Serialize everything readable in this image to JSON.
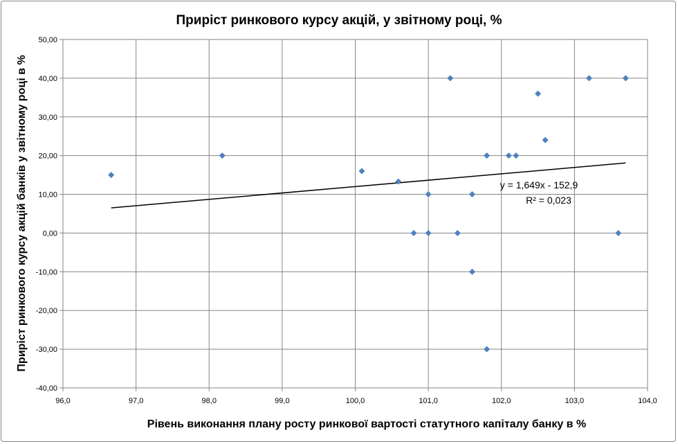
{
  "chart_data": {
    "type": "scatter",
    "title": "Приріст ринкового курсу акцій, у звітному році, %",
    "xlabel": "Рівень виконання плану росту ринкової вартості статутного капіталу банку в %",
    "ylabel": "Приріст ринкового курсу акцій банків у звітному році в %",
    "xlim": [
      96,
      104
    ],
    "ylim": [
      -40,
      50
    ],
    "xticks": [
      "96,0",
      "97,0",
      "98,0",
      "99,0",
      "100,0",
      "101,0",
      "102,0",
      "103,0",
      "104,0"
    ],
    "yticks": [
      "50,00",
      "40,00",
      "30,00",
      "20,00",
      "10,00",
      "0,00",
      "-10,00",
      "-20,00",
      "-30,00",
      "-40,00"
    ],
    "grid": true,
    "marker_color": "#4f81bd",
    "points": [
      [
        96.66,
        15
      ],
      [
        98.18,
        20
      ],
      [
        100.09,
        16
      ],
      [
        100.59,
        13.3
      ],
      [
        100.8,
        0
      ],
      [
        101.0,
        0
      ],
      [
        101.0,
        10
      ],
      [
        101.3,
        40
      ],
      [
        101.4,
        0
      ],
      [
        101.6,
        10
      ],
      [
        101.6,
        -10
      ],
      [
        101.8,
        20
      ],
      [
        101.8,
        -30
      ],
      [
        102.1,
        20
      ],
      [
        102.2,
        20
      ],
      [
        102.5,
        36
      ],
      [
        102.6,
        24
      ],
      [
        103.2,
        40
      ],
      [
        103.6,
        0
      ],
      [
        103.7,
        40
      ]
    ],
    "trendline": {
      "slope": 1.649,
      "intercept": -152.9,
      "x_range": [
        96.66,
        103.7
      ]
    },
    "annotations": {
      "equation": "y = 1,649x - 152,9",
      "r2": "R² = 0,023"
    }
  }
}
